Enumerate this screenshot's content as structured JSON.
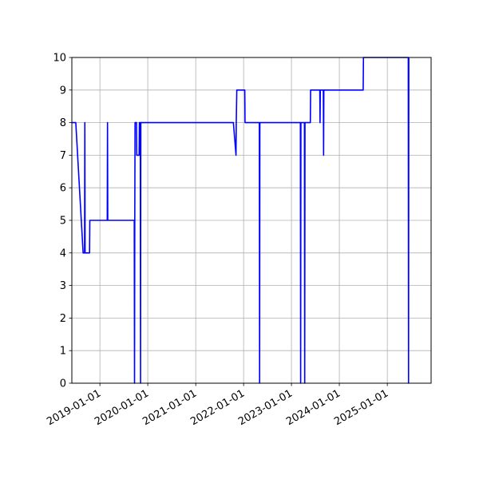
{
  "chart_data": {
    "type": "line",
    "title": "",
    "xlabel": "",
    "ylabel": "",
    "x_axis_type": "date",
    "xlim": [
      "2018-06-01",
      "2025-12-01"
    ],
    "ylim": [
      0,
      10
    ],
    "grid": true,
    "legend": "none",
    "x_tick_labels": [
      "2019-01-01",
      "2020-01-01",
      "2021-01-01",
      "2022-01-01",
      "2023-01-01",
      "2024-01-01",
      "2025-01-01"
    ],
    "y_tick_labels": [
      "0",
      "1",
      "2",
      "3",
      "4",
      "5",
      "6",
      "7",
      "8",
      "9",
      "10"
    ],
    "series": [
      {
        "color": "#0000ff",
        "points": [
          [
            "2018-06-01",
            8
          ],
          [
            "2018-07-01",
            8
          ],
          [
            "2018-08-26",
            4
          ],
          [
            "2018-09-06",
            4
          ],
          [
            "2018-09-08",
            8
          ],
          [
            "2018-09-10",
            4
          ],
          [
            "2018-10-14",
            4
          ],
          [
            "2018-10-16",
            5
          ],
          [
            "2019-02-26",
            5
          ],
          [
            "2019-02-28",
            8
          ],
          [
            "2019-03-02",
            5
          ],
          [
            "2019-09-20",
            5
          ],
          [
            "2019-09-22",
            0
          ],
          [
            "2019-09-24",
            5
          ],
          [
            "2019-09-26",
            8
          ],
          [
            "2019-10-07",
            8
          ],
          [
            "2019-10-09",
            7
          ],
          [
            "2019-10-27",
            7
          ],
          [
            "2019-10-29",
            8
          ],
          [
            "2019-11-05",
            8
          ],
          [
            "2019-11-07",
            0
          ],
          [
            "2019-11-09",
            8
          ],
          [
            "2021-10-15",
            8
          ],
          [
            "2021-11-04",
            7
          ],
          [
            "2021-11-06",
            8
          ],
          [
            "2021-11-10",
            9
          ],
          [
            "2022-01-10",
            9
          ],
          [
            "2022-01-12",
            8
          ],
          [
            "2022-05-01",
            8
          ],
          [
            "2022-05-03",
            0
          ],
          [
            "2022-05-05",
            8
          ],
          [
            "2023-03-10",
            8
          ],
          [
            "2023-03-12",
            0
          ],
          [
            "2023-03-14",
            8
          ],
          [
            "2023-04-10",
            8
          ],
          [
            "2023-04-12",
            0
          ],
          [
            "2023-04-14",
            8
          ],
          [
            "2023-05-25",
            8
          ],
          [
            "2023-05-27",
            9
          ],
          [
            "2023-08-05",
            9
          ],
          [
            "2023-08-07",
            8
          ],
          [
            "2023-08-09",
            9
          ],
          [
            "2023-09-01",
            9
          ],
          [
            "2023-09-03",
            7
          ],
          [
            "2023-09-05",
            9
          ],
          [
            "2024-07-01",
            9
          ],
          [
            "2024-07-03",
            10
          ],
          [
            "2025-06-10",
            10
          ],
          [
            "2025-06-12",
            0
          ],
          [
            "2025-06-14",
            10
          ]
        ]
      }
    ]
  }
}
